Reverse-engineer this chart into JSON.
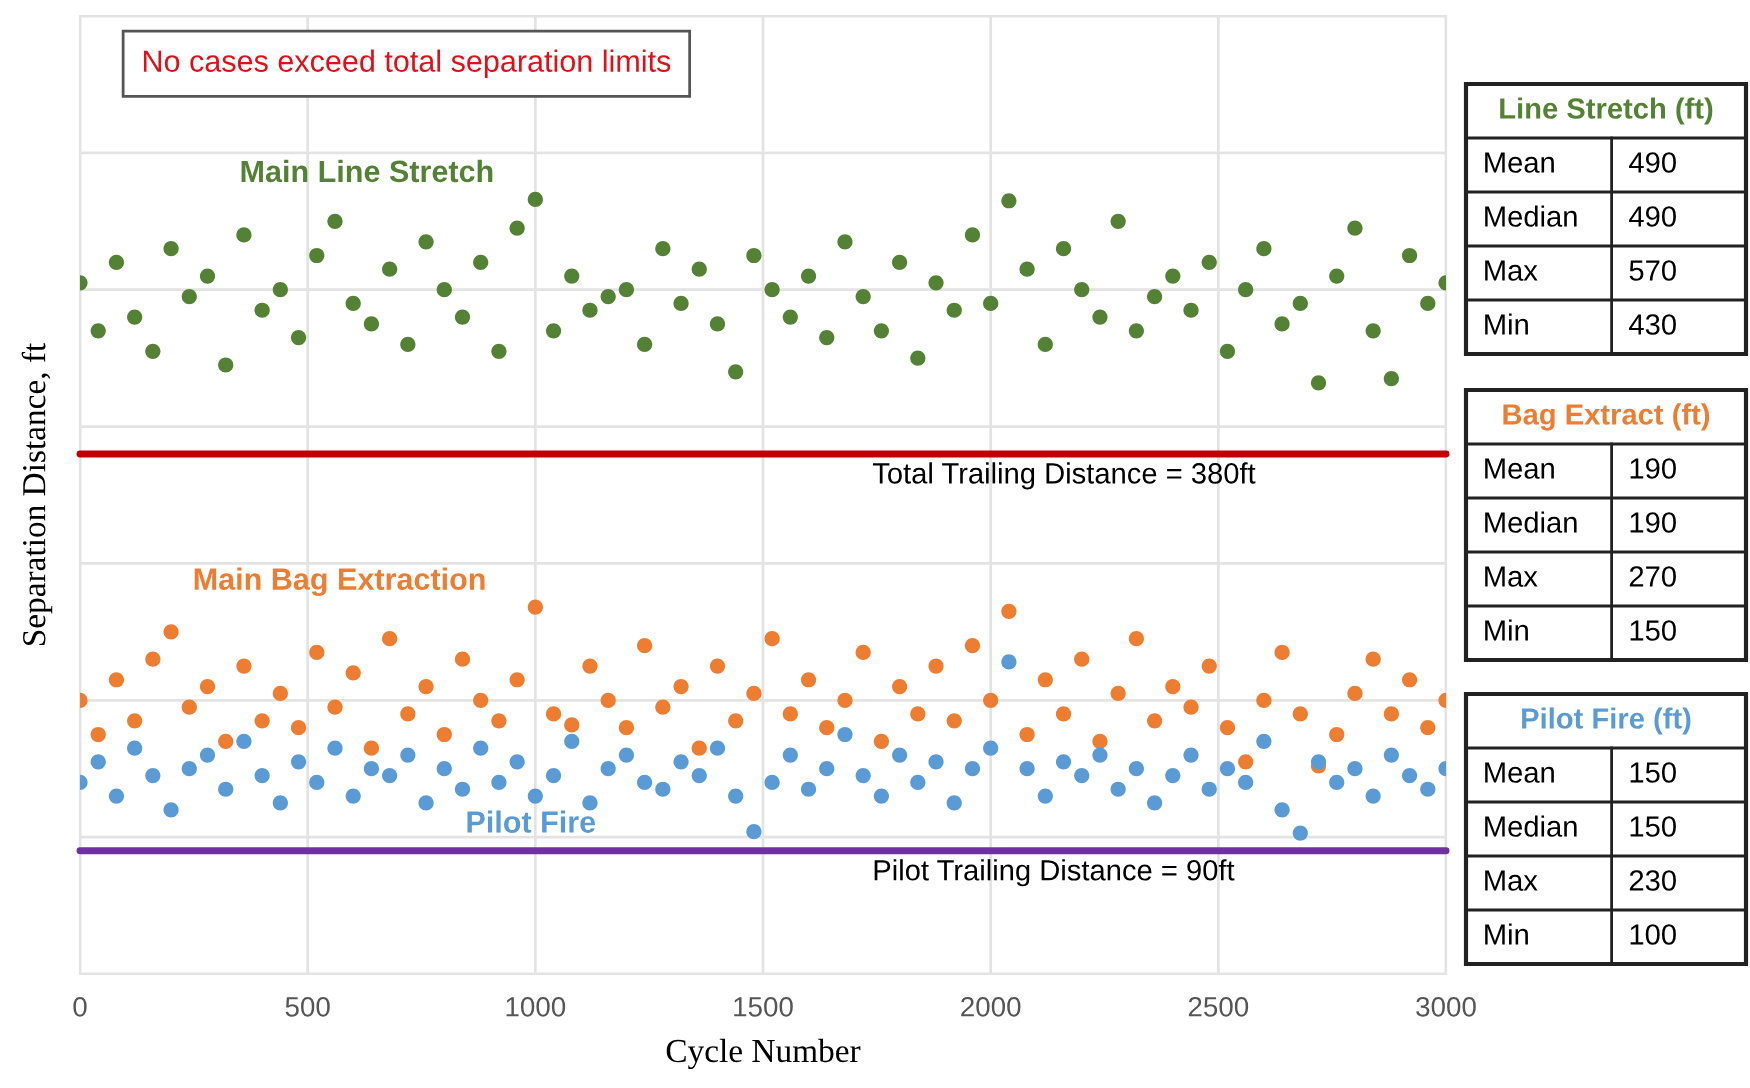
{
  "chart_data": [
    {
      "type": "scatter",
      "xlabel": "Cycle Number",
      "ylabel": "Separation Distance, ft",
      "x": [
        0,
        40,
        80,
        120,
        160,
        200,
        240,
        280,
        320,
        360,
        400,
        440,
        480,
        520,
        560,
        600,
        640,
        680,
        720,
        760,
        800,
        840,
        880,
        920,
        960,
        1000,
        1040,
        1080,
        1120,
        1160,
        1200,
        1240,
        1280,
        1320,
        1360,
        1400,
        1440,
        1480,
        1520,
        1560,
        1600,
        1640,
        1680,
        1720,
        1760,
        1800,
        1840,
        1880,
        1920,
        1960,
        2000,
        2040,
        2080,
        2120,
        2160,
        2200,
        2240,
        2280,
        2320,
        2360,
        2400,
        2440,
        2480,
        2520,
        2560,
        2600,
        2640,
        2680,
        2720,
        2760,
        2800,
        2840,
        2880,
        2920,
        2960,
        3000
      ],
      "series": [
        {
          "name": "Main Line Stretch",
          "color": "#548235",
          "values": [
            505,
            470,
            520,
            480,
            455,
            530,
            495,
            510,
            445,
            540,
            485,
            500,
            465,
            525,
            550,
            490,
            475,
            515,
            460,
            535,
            500,
            480,
            520,
            455,
            545,
            566,
            470,
            510,
            485,
            495,
            500,
            460,
            530,
            490,
            515,
            475,
            440,
            525,
            500,
            480,
            510,
            465,
            535,
            495,
            470,
            520,
            450,
            505,
            485,
            540,
            490,
            565,
            515,
            460,
            530,
            500,
            480,
            550,
            470,
            495,
            510,
            485,
            520,
            455,
            500,
            530,
            475,
            490,
            432,
            510,
            545,
            470,
            435,
            525,
            490,
            505
          ]
        },
        {
          "name": "Main Bag Extraction",
          "color": "#ed7d31",
          "values": [
            200,
            175,
            215,
            185,
            230,
            250,
            195,
            210,
            170,
            225,
            185,
            205,
            180,
            235,
            195,
            220,
            165,
            245,
            190,
            210,
            175,
            230,
            200,
            185,
            215,
            268,
            190,
            182,
            225,
            200,
            180,
            240,
            195,
            210,
            165,
            225,
            185,
            205,
            245,
            190,
            215,
            180,
            200,
            235,
            170,
            210,
            190,
            225,
            185,
            240,
            200,
            265,
            175,
            215,
            190,
            230,
            170,
            205,
            245,
            185,
            210,
            195,
            225,
            180,
            155,
            200,
            235,
            190,
            152,
            175,
            205,
            230,
            190,
            215,
            180,
            200
          ]
        },
        {
          "name": "Pilot Fire",
          "color": "#5b9bd5",
          "values": [
            140,
            155,
            130,
            165,
            145,
            120,
            150,
            160,
            135,
            170,
            145,
            125,
            155,
            140,
            165,
            130,
            150,
            145,
            160,
            125,
            150,
            135,
            165,
            140,
            155,
            130,
            145,
            170,
            125,
            150,
            160,
            140,
            135,
            155,
            145,
            165,
            130,
            104,
            140,
            160,
            135,
            150,
            175,
            145,
            130,
            160,
            140,
            155,
            125,
            150,
            165,
            228,
            150,
            130,
            155,
            145,
            160,
            135,
            150,
            125,
            145,
            160,
            135,
            150,
            140,
            170,
            120,
            103,
            155,
            140,
            150,
            130,
            160,
            145,
            135,
            150
          ]
        }
      ],
      "xlim": [
        0,
        3000
      ],
      "xticks": [
        0,
        500,
        1000,
        1500,
        2000,
        2500,
        3000
      ],
      "ylim": [
        0,
        700
      ],
      "yticks": [
        {
          "value": 0,
          "label": null
        },
        {
          "value": 100,
          "label": null
        },
        {
          "value": 200,
          "label": null
        },
        {
          "value": 300,
          "label": null
        },
        {
          "value": 400,
          "label": null
        },
        {
          "value": 500,
          "label": null
        },
        {
          "value": 600,
          "label": null
        },
        {
          "value": 700,
          "label": null
        }
      ],
      "tick_labels": "x",
      "grid": true,
      "marker": "circle",
      "legend": false,
      "ref_lines": [
        {
          "axis": "y",
          "value": 380,
          "label": "Total Trailing Distance = 380ft",
          "color": "#c00000"
        },
        {
          "axis": "y",
          "value": 90,
          "label": "Pilot Trailing Distance = 90ft",
          "color": "#7030a0"
        }
      ],
      "annotations": [
        "No cases exceed total separation limits"
      ]
    },
    {
      "type": "other",
      "title": "Line Stretch (ft)",
      "color": "#548235",
      "categories": [
        "Mean",
        "Median",
        "Max",
        "Min"
      ],
      "values": [
        490,
        490,
        570,
        430
      ],
      "data_labels": true
    },
    {
      "type": "other",
      "title": "Bag Extract (ft)",
      "color": "#ed7d31",
      "categories": [
        "Mean",
        "Median",
        "Max",
        "Min"
      ],
      "values": [
        190,
        190,
        270,
        150
      ],
      "data_labels": true
    },
    {
      "type": "other",
      "title": "Pilot Fire (ft)",
      "color": "#5b9bd5",
      "categories": [
        "Mean",
        "Median",
        "Max",
        "Min"
      ],
      "values": [
        150,
        150,
        230,
        100
      ],
      "data_labels": true
    }
  ]
}
